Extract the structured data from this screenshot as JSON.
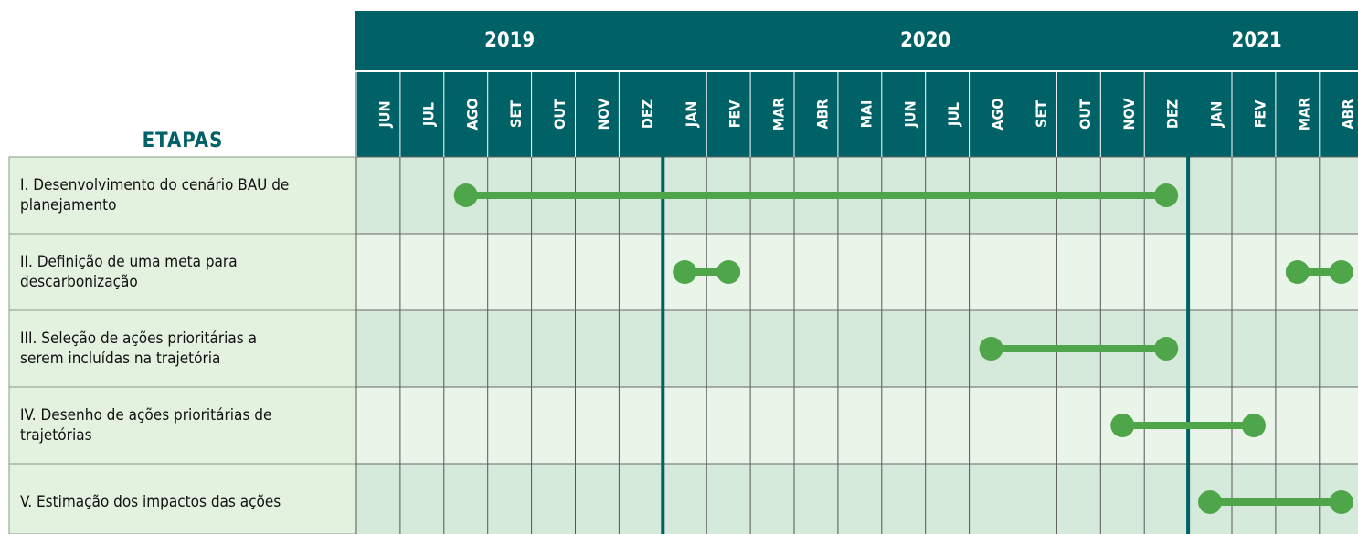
{
  "header": {
    "title": "ETAPAS"
  },
  "timeline": {
    "years": [
      {
        "year": "2019",
        "months": [
          "JUN",
          "JUL",
          "AGO",
          "SET",
          "OUT",
          "NOV",
          "DEZ"
        ]
      },
      {
        "year": "2020",
        "months": [
          "JAN",
          "FEV",
          "MAR",
          "ABR",
          "MAI",
          "JUN",
          "JUL",
          "AGO",
          "SET",
          "OUT",
          "NOV",
          "DEZ"
        ]
      },
      {
        "year": "2021",
        "months": [
          "JAN",
          "FEV",
          "MAR",
          "ABR"
        ]
      }
    ]
  },
  "stages": [
    {
      "lines": [
        "I. Desenvolvimento do cenário BAU de",
        "planejamento"
      ],
      "spans": [
        [
          2,
          18
        ]
      ]
    },
    {
      "lines": [
        "II. Definição de uma meta para",
        "descarbonização"
      ],
      "spans": [
        [
          7,
          8
        ],
        [
          21,
          22
        ]
      ]
    },
    {
      "lines": [
        "III. Seleção de ações prioritárias a",
        "serem incluídas na trajetória"
      ],
      "spans": [
        [
          14,
          18
        ]
      ]
    },
    {
      "lines": [
        "IV. Desenho de ações prioritárias de",
        "trajetórias"
      ],
      "spans": [
        [
          17,
          20
        ]
      ]
    },
    {
      "lines": [
        "V. Estimação dos impactos das ações"
      ],
      "spans": [
        [
          19,
          22
        ]
      ]
    }
  ]
}
